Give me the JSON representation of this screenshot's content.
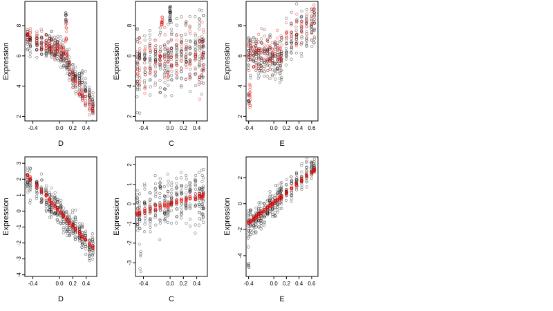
{
  "chart_data": [
    {
      "type": "scatter",
      "id": "p1",
      "xlabel": "D",
      "ylabel": "Expression",
      "xlim": [
        -0.52,
        0.56
      ],
      "ylim": [
        1.7,
        9.6
      ],
      "xticks": [
        -0.4,
        0.0,
        0.2,
        0.4
      ],
      "xtick_labels": [
        "-0.4",
        "0.0",
        "0.2",
        "0.4"
      ],
      "yticks": [
        2,
        4,
        6,
        8
      ],
      "ytick_labels": [
        "2",
        "4",
        "6",
        "8"
      ],
      "columns_x": [
        -0.48,
        -0.44,
        -0.34,
        -0.27,
        -0.2,
        -0.15,
        -0.12,
        -0.07,
        -0.03,
        0.02,
        0.06,
        0.11,
        0.15,
        0.2,
        0.24,
        0.3,
        0.34,
        0.39,
        0.45,
        0.5
      ],
      "cloud": {
        "type": "piecewise",
        "pts": [
          [
            -0.5,
            7.0
          ],
          [
            0.05,
            6.3
          ],
          [
            0.2,
            4.8
          ],
          [
            0.5,
            3.0
          ]
        ],
        "spread": 1.0,
        "n_per_col": 18,
        "extra": [
          [
            0.1,
            8.0,
            9.0,
            12
          ]
        ]
      },
      "fit": {
        "type": "piecewise",
        "pts": [
          [
            -0.5,
            7.3
          ],
          [
            0.1,
            6.2
          ],
          [
            0.2,
            4.4
          ],
          [
            0.5,
            2.6
          ]
        ],
        "spread": 0.6,
        "n_per_col": 8,
        "extra": [
          [
            0.1,
            6.5,
            8.9,
            10
          ]
        ]
      }
    },
    {
      "type": "scatter",
      "id": "p2",
      "xlabel": "C",
      "ylabel": "Expression",
      "xlim": [
        -0.52,
        0.56
      ],
      "ylim": [
        1.7,
        9.6
      ],
      "xticks": [
        -0.4,
        0.0,
        0.2,
        0.4
      ],
      "xtick_labels": [
        "-0.4",
        "0.0",
        "0.2",
        "0.4"
      ],
      "yticks": [
        2,
        4,
        6,
        8
      ],
      "ytick_labels": [
        "2",
        "4",
        "6",
        "8"
      ],
      "columns_x": [
        -0.49,
        -0.46,
        -0.38,
        -0.3,
        -0.22,
        -0.15,
        -0.08,
        -0.03,
        0.02,
        0.1,
        0.17,
        0.24,
        0.3,
        0.38,
        0.44,
        0.48,
        0.5
      ],
      "cloud": {
        "type": "linear",
        "pts": [
          [
            -0.5,
            5.5
          ],
          [
            0.5,
            6.3
          ]
        ],
        "spread": 2.2,
        "n_per_col": 20,
        "extra": [
          [
            0.0,
            8.2,
            9.3,
            25
          ]
        ]
      },
      "fit": {
        "type": "linear",
        "pts": [
          [
            -0.5,
            5.3
          ],
          [
            0.5,
            6.2
          ]
        ],
        "spread": 2.0,
        "n_per_col": 8,
        "extra": [
          [
            -0.12,
            8.0,
            8.7,
            14
          ]
        ]
      }
    },
    {
      "type": "scatter",
      "id": "p3",
      "xlabel": "E",
      "ylabel": "Expression",
      "xlim": [
        -0.44,
        0.7
      ],
      "ylim": [
        1.7,
        9.6
      ],
      "xticks": [
        -0.4,
        0.0,
        0.2,
        0.4,
        0.6
      ],
      "xtick_labels": [
        "-0.4",
        "0.0",
        "0.2",
        "0.4",
        "0.6"
      ],
      "yticks": [
        2,
        4,
        6,
        8
      ],
      "ytick_labels": [
        "2",
        "4",
        "6",
        "8"
      ],
      "columns_x": [
        -0.4,
        -0.37,
        -0.32,
        -0.28,
        -0.24,
        -0.2,
        -0.15,
        -0.1,
        -0.06,
        -0.02,
        0.02,
        0.06,
        0.1,
        0.12,
        0.2,
        0.28,
        0.36,
        0.44,
        0.52,
        0.6,
        0.64
      ],
      "cloud": {
        "type": "piecewise",
        "pts": [
          [
            -0.4,
            6.0
          ],
          [
            0.12,
            5.8
          ],
          [
            0.3,
            7.1
          ],
          [
            0.66,
            8.4
          ]
        ],
        "spread": 1.5,
        "n_per_col": 16,
        "extra": [
          [
            -0.4,
            2.6,
            4.0,
            10
          ]
        ]
      },
      "fit": {
        "type": "piecewise",
        "pts": [
          [
            -0.4,
            6.2
          ],
          [
            0.1,
            6.3
          ],
          [
            0.3,
            7.4
          ],
          [
            0.66,
            8.6
          ]
        ],
        "spread": 1.2,
        "n_per_col": 7,
        "extra": [
          [
            -0.38,
            2.5,
            4.2,
            14
          ]
        ]
      }
    },
    {
      "type": "scatter",
      "id": "p4",
      "xlabel": "D",
      "ylabel": "Expression",
      "xlim": [
        -0.52,
        0.56
      ],
      "ylim": [
        -4.1,
        3.4
      ],
      "xticks": [
        -0.4,
        0.0,
        0.2,
        0.4
      ],
      "xtick_labels": [
        "-0.4",
        "0.0",
        "0.2",
        "0.4"
      ],
      "yticks": [
        -4,
        -3,
        -2,
        -1,
        0,
        1,
        2,
        3
      ],
      "ytick_labels": [
        "-4",
        "-3",
        "-2",
        "-1",
        "0",
        "1",
        "2",
        "3"
      ],
      "columns_x": [
        -0.48,
        -0.44,
        -0.34,
        -0.27,
        -0.2,
        -0.15,
        -0.12,
        -0.07,
        -0.03,
        0.02,
        0.06,
        0.11,
        0.15,
        0.2,
        0.24,
        0.3,
        0.34,
        0.39,
        0.45,
        0.5
      ],
      "cloud": {
        "type": "linear",
        "pts": [
          [
            -0.5,
            2.1
          ],
          [
            0.5,
            -2.3
          ]
        ],
        "spread": 0.9,
        "n_per_col": 18,
        "extra": []
      },
      "fit": {
        "type": "linear",
        "pts": [
          [
            -0.48,
            2.2
          ],
          [
            0.5,
            -2.3
          ]
        ],
        "spread": 0.15,
        "n_per_col": 8,
        "extra": []
      }
    },
    {
      "type": "scatter",
      "id": "p5",
      "xlabel": "C",
      "ylabel": "Expression",
      "xlim": [
        -0.52,
        0.56
      ],
      "ylim": [
        -3.7,
        2.4
      ],
      "xticks": [
        -0.4,
        0.0,
        0.2,
        0.4
      ],
      "xtick_labels": [
        "-0.4",
        "0.0",
        "0.2",
        "0.4"
      ],
      "yticks": [
        -3,
        -2,
        -1,
        0,
        1,
        2
      ],
      "ytick_labels": [
        "-3",
        "-2",
        "-1",
        "0",
        "1",
        "2"
      ],
      "columns_x": [
        -0.49,
        -0.46,
        -0.38,
        -0.3,
        -0.22,
        -0.15,
        -0.08,
        -0.03,
        0.02,
        0.1,
        0.17,
        0.24,
        0.3,
        0.38,
        0.44,
        0.48,
        0.5
      ],
      "cloud": {
        "type": "linear",
        "pts": [
          [
            -0.5,
            -0.4
          ],
          [
            0.5,
            0.5
          ]
        ],
        "spread": 1.3,
        "n_per_col": 18,
        "extra": [
          [
            -0.45,
            -3.5,
            -2.2,
            5
          ]
        ]
      },
      "fit": {
        "type": "linear",
        "pts": [
          [
            -0.5,
            -0.45
          ],
          [
            0.5,
            0.45
          ]
        ],
        "spread": 0.15,
        "n_per_col": 8,
        "extra": []
      }
    },
    {
      "type": "scatter",
      "id": "p6",
      "xlabel": "E",
      "ylabel": "Expression",
      "xlim": [
        -0.44,
        0.7
      ],
      "ylim": [
        -5.6,
        3.6
      ],
      "xticks": [
        -0.4,
        0.0,
        0.2,
        0.4,
        0.6
      ],
      "xtick_labels": [
        "-0.4",
        "0.0",
        "0.2",
        "0.4",
        "0.6"
      ],
      "yticks": [
        -4,
        -2,
        0,
        2
      ],
      "ytick_labels": [
        "-4",
        "-2",
        "0",
        "2"
      ],
      "columns_x": [
        -0.4,
        -0.37,
        -0.32,
        -0.28,
        -0.24,
        -0.2,
        -0.15,
        -0.1,
        -0.06,
        -0.02,
        0.02,
        0.06,
        0.1,
        0.12,
        0.2,
        0.28,
        0.36,
        0.44,
        0.52,
        0.6,
        0.64
      ],
      "cloud": {
        "type": "linear",
        "pts": [
          [
            -0.4,
            -1.6
          ],
          [
            0.64,
            2.7
          ]
        ],
        "spread": 1.0,
        "n_per_col": 16,
        "extra": [
          [
            -0.4,
            -5.2,
            -3.0,
            6
          ]
        ]
      },
      "fit": {
        "type": "linear",
        "pts": [
          [
            -0.4,
            -1.5
          ],
          [
            0.64,
            2.6
          ]
        ],
        "spread": 0.15,
        "n_per_col": 9,
        "extra": []
      }
    }
  ]
}
